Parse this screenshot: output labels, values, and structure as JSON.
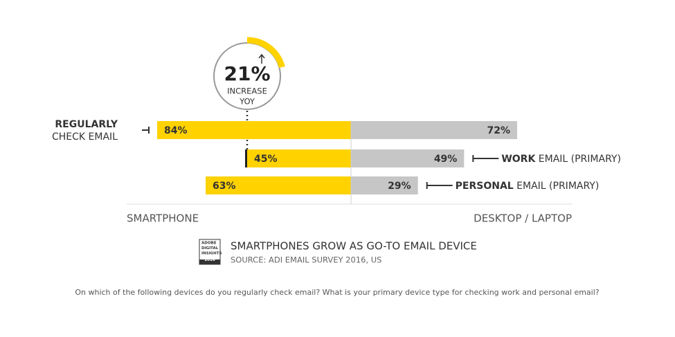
{
  "chart_data": {
    "type": "butterfly_bar",
    "categories": [
      [
        "REGULARLY",
        "CHECK EMAIL"
      ],
      [
        "WORK",
        "EMAIL (PRIMARY)"
      ],
      [
        "PERSONAL",
        "EMAIL (PRIMARY)"
      ]
    ],
    "series": [
      {
        "name": "SMARTPHONE",
        "color": "#ffd200",
        "side": "left",
        "values": [
          84,
          45,
          63
        ],
        "value_labels": [
          "84%",
          "45%",
          "63%"
        ]
      },
      {
        "name": "DESKTOP / LAPTOP",
        "color": "#c6c6c6",
        "side": "right",
        "values": [
          72,
          49,
          29
        ],
        "value_labels": [
          "72%",
          "49%",
          "29%"
        ]
      }
    ],
    "annotation": {
      "value": 21,
      "value_label": "21%",
      "text": [
        "INCREASE",
        "YOY"
      ]
    },
    "title": "SMARTPHONES GROW AS GO-TO EMAIL DEVICE",
    "subtitle": "SOURCE: ADI EMAIL SURVEY 2016, US",
    "badge": [
      "ADOBE",
      "DIGITAL",
      "INSIGHTS",
      "2016"
    ],
    "footnote": "On which of the following devices do you regularly check email? What is your primary device type for checking work and personal email?"
  }
}
